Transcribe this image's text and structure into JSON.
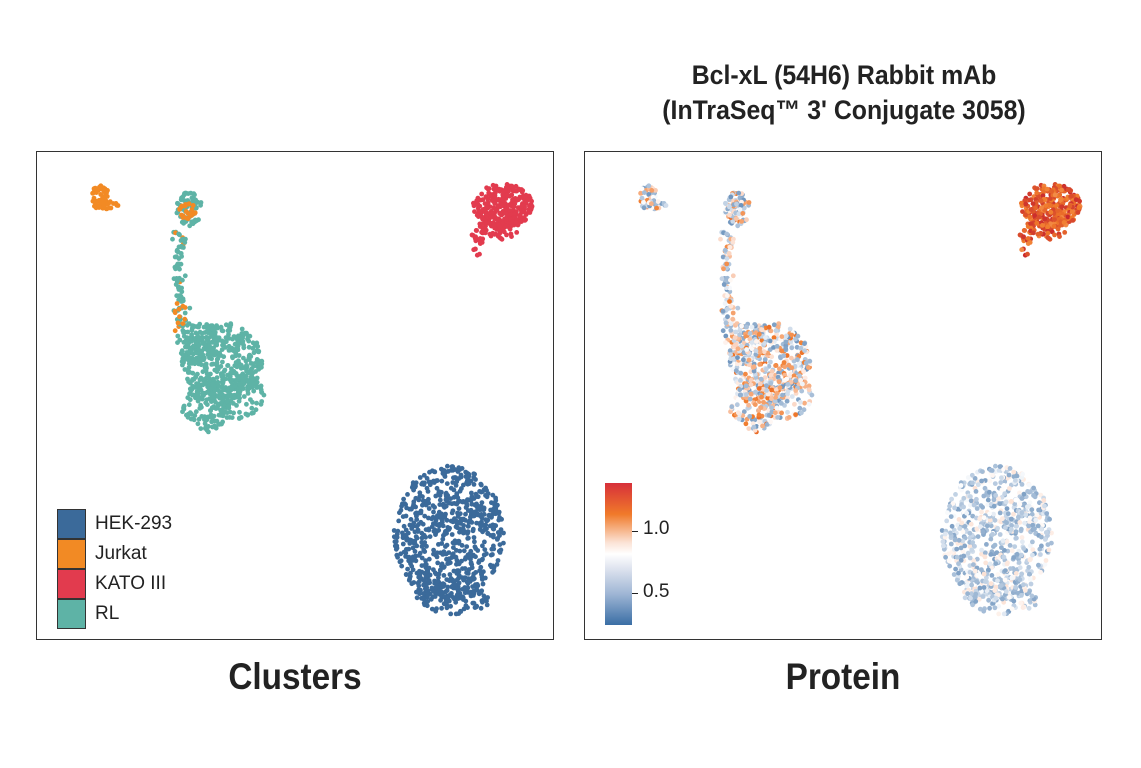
{
  "figure": {
    "title_line1": "Bcl-xL (54H6) Rabbit mAb",
    "title_line2": "(InTraSeq™ 3' Conjugate 3058)"
  },
  "chart_data": [
    {
      "type": "scatter",
      "name": "Clusters",
      "xlabel": "",
      "ylabel": "",
      "grid": false,
      "legend_position": "bottom-left",
      "legend": [
        {
          "label": "HEK-293",
          "color": "#3b6a9a"
        },
        {
          "label": "Jurkat",
          "color": "#f28a24"
        },
        {
          "label": "KATO III",
          "color": "#e23b4e"
        },
        {
          "label": "RL",
          "color": "#5eb3a6"
        }
      ]
    },
    {
      "type": "scatter",
      "name": "Protein",
      "xlabel": "",
      "ylabel": "",
      "grid": false,
      "colorbar_position": "bottom-left",
      "colorbar": {
        "ticks": [
          {
            "value": 1.0,
            "label": "1.0"
          },
          {
            "value": 0.5,
            "label": "0.5"
          }
        ],
        "range": [
          0.2,
          1.4
        ],
        "colors": [
          "#3a6ea5",
          "#ffffff",
          "#f07a2a",
          "#d7303a"
        ]
      }
    }
  ]
}
